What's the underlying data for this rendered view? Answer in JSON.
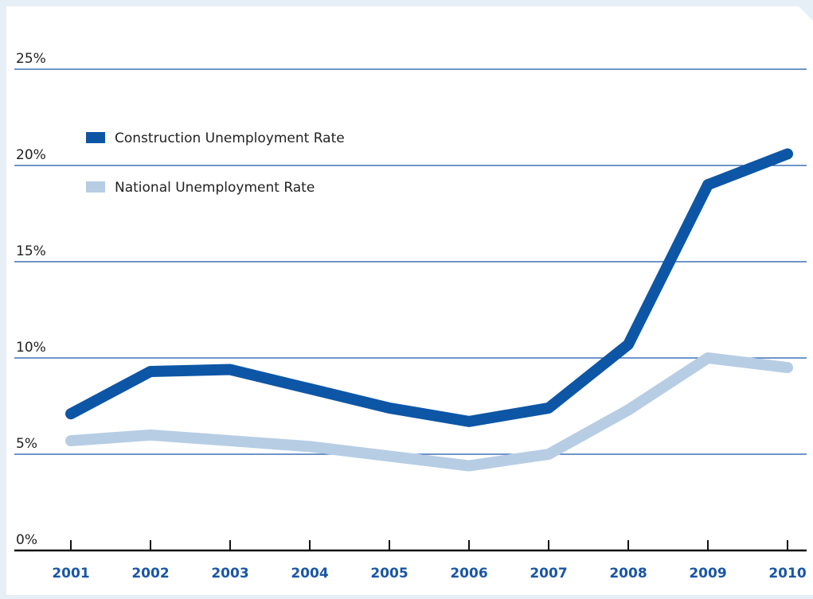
{
  "chart_data": {
    "type": "line",
    "categories": [
      "2001",
      "2002",
      "2003",
      "2004",
      "2005",
      "2006",
      "2007",
      "2008",
      "2009",
      "2010"
    ],
    "series": [
      {
        "name": "Construction Unemployment Rate",
        "color": "#0d56a6",
        "values": [
          7.1,
          9.3,
          9.4,
          8.4,
          7.4,
          6.7,
          7.4,
          10.7,
          19.0,
          20.6
        ]
      },
      {
        "name": "National Unemployment Rate",
        "color": "#b7cde4",
        "values": [
          5.7,
          6.0,
          5.7,
          5.4,
          4.9,
          4.4,
          5.0,
          7.3,
          10.0,
          9.5
        ]
      }
    ],
    "yticks": [
      "0%",
      "5%",
      "10%",
      "15%",
      "20%",
      "25%"
    ],
    "ylim": [
      0,
      25
    ],
    "grid": true,
    "legend_position": "top-left",
    "gridline_color": "#1a56a6",
    "xlabel_color": "#1a56a6"
  }
}
